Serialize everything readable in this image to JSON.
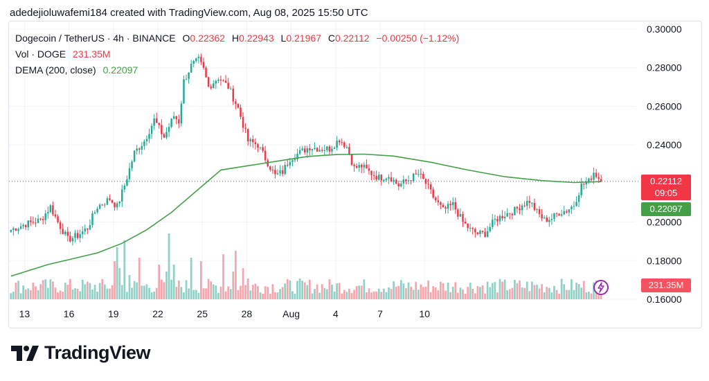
{
  "header": {
    "text": "adedejioluwafemi184 created with TradingView.com, Aug 08, 2025 15:50 UTC"
  },
  "legend": {
    "symbol": "Dogecoin / TetherUS · 4h · BINANCE",
    "o_label": "O",
    "o_value": "0.22362",
    "h_label": "H",
    "h_value": "0.22943",
    "l_label": "L",
    "l_value": "0.21967",
    "c_label": "C",
    "c_value": "0.22112",
    "change": "−0.00250 (−1.12%)",
    "vol_label": "Vol · DOGE",
    "vol_value": "231.35M",
    "dema_label": "DEMA (200, close)",
    "dema_value": "0.22097"
  },
  "badges": {
    "price": "0.22112",
    "countdown": "09:05",
    "dema": "0.22097",
    "volume": "231.35M"
  },
  "colors": {
    "up": "#22ab94",
    "down": "#f23645",
    "vol_up": "#8fd1c6",
    "vol_down": "#f5a5ac",
    "dema": "#43a047",
    "grid": "#f0f3fa",
    "text": "#131722"
  },
  "logo": {
    "text": "TradingView"
  },
  "chart_data": {
    "type": "candlestick",
    "symbol": "DOGE/USDT",
    "timeframe": "4h",
    "x_ticks": [
      "13",
      "16",
      "19",
      "22",
      "25",
      "28",
      "Aug",
      "4",
      "7",
      "10"
    ],
    "y_ticks": [
      "0.30000",
      "0.28000",
      "0.26000",
      "0.24000",
      "0.20000",
      "0.18000",
      "0.16000"
    ],
    "ylim": [
      0.16,
      0.3
    ],
    "last_close": 0.22112,
    "keypoints": [
      [
        0,
        0.196
      ],
      [
        6,
        0.199
      ],
      [
        12,
        0.201
      ],
      [
        16,
        0.208
      ],
      [
        19,
        0.2
      ],
      [
        23,
        0.191
      ],
      [
        27,
        0.193
      ],
      [
        31,
        0.197
      ],
      [
        35,
        0.208
      ],
      [
        40,
        0.212
      ],
      [
        43,
        0.208
      ],
      [
        46,
        0.219
      ],
      [
        50,
        0.236
      ],
      [
        54,
        0.242
      ],
      [
        58,
        0.253
      ],
      [
        62,
        0.244
      ],
      [
        66,
        0.255
      ],
      [
        68,
        0.252
      ],
      [
        70,
        0.273
      ],
      [
        73,
        0.281
      ],
      [
        76,
        0.284
      ],
      [
        78,
        0.279
      ],
      [
        80,
        0.27
      ],
      [
        84,
        0.275
      ],
      [
        88,
        0.27
      ],
      [
        92,
        0.259
      ],
      [
        96,
        0.242
      ],
      [
        100,
        0.24
      ],
      [
        103,
        0.233
      ],
      [
        107,
        0.224
      ],
      [
        110,
        0.226
      ],
      [
        113,
        0.233
      ],
      [
        117,
        0.236
      ],
      [
        121,
        0.239
      ],
      [
        125,
        0.238
      ],
      [
        129,
        0.238
      ],
      [
        133,
        0.243
      ],
      [
        136,
        0.239
      ],
      [
        139,
        0.228
      ],
      [
        142,
        0.229
      ],
      [
        145,
        0.226
      ],
      [
        149,
        0.223
      ],
      [
        153,
        0.224
      ],
      [
        157,
        0.219
      ],
      [
        161,
        0.222
      ],
      [
        165,
        0.225
      ],
      [
        168,
        0.22
      ],
      [
        171,
        0.213
      ],
      [
        175,
        0.206
      ],
      [
        179,
        0.209
      ],
      [
        183,
        0.2
      ],
      [
        186,
        0.196
      ],
      [
        189,
        0.194
      ],
      [
        192,
        0.194
      ],
      [
        196,
        0.201
      ],
      [
        200,
        0.204
      ],
      [
        204,
        0.206
      ],
      [
        207,
        0.209
      ],
      [
        210,
        0.211
      ],
      [
        213,
        0.205
      ],
      [
        216,
        0.201
      ],
      [
        219,
        0.202
      ],
      [
        222,
        0.205
      ],
      [
        225,
        0.206
      ],
      [
        228,
        0.209
      ],
      [
        231,
        0.219
      ],
      [
        234,
        0.221
      ],
      [
        236,
        0.226
      ],
      [
        239,
        0.22112
      ]
    ],
    "series": [
      {
        "name": "DEMA (200, close)",
        "type": "line",
        "points": [
          [
            0,
            0.172
          ],
          [
            15,
            0.178
          ],
          [
            25,
            0.181
          ],
          [
            35,
            0.184
          ],
          [
            45,
            0.189
          ],
          [
            55,
            0.196
          ],
          [
            65,
            0.205
          ],
          [
            75,
            0.216
          ],
          [
            85,
            0.227
          ],
          [
            95,
            0.229
          ],
          [
            110,
            0.232
          ],
          [
            120,
            0.234
          ],
          [
            132,
            0.235
          ],
          [
            143,
            0.2352
          ],
          [
            155,
            0.2342
          ],
          [
            170,
            0.231
          ],
          [
            185,
            0.227
          ],
          [
            200,
            0.2235
          ],
          [
            215,
            0.2215
          ],
          [
            228,
            0.2205
          ],
          [
            239,
            0.22097
          ]
        ]
      }
    ],
    "volume": {
      "name": "Vol · DOGE",
      "last_value": "231.35M",
      "spikes": [
        [
          42,
          0.55
        ],
        [
          43,
          0.75
        ],
        [
          44,
          0.45
        ],
        [
          46,
          0.85
        ],
        [
          48,
          0.35
        ],
        [
          52,
          0.6
        ],
        [
          60,
          0.5
        ],
        [
          63,
          0.4
        ],
        [
          64,
          0.95
        ],
        [
          66,
          0.5
        ],
        [
          73,
          0.6
        ],
        [
          77,
          0.55
        ],
        [
          86,
          0.65
        ],
        [
          90,
          0.4
        ],
        [
          91,
          0.7
        ],
        [
          94,
          0.45
        ],
        [
          96,
          0.3
        ]
      ]
    }
  }
}
